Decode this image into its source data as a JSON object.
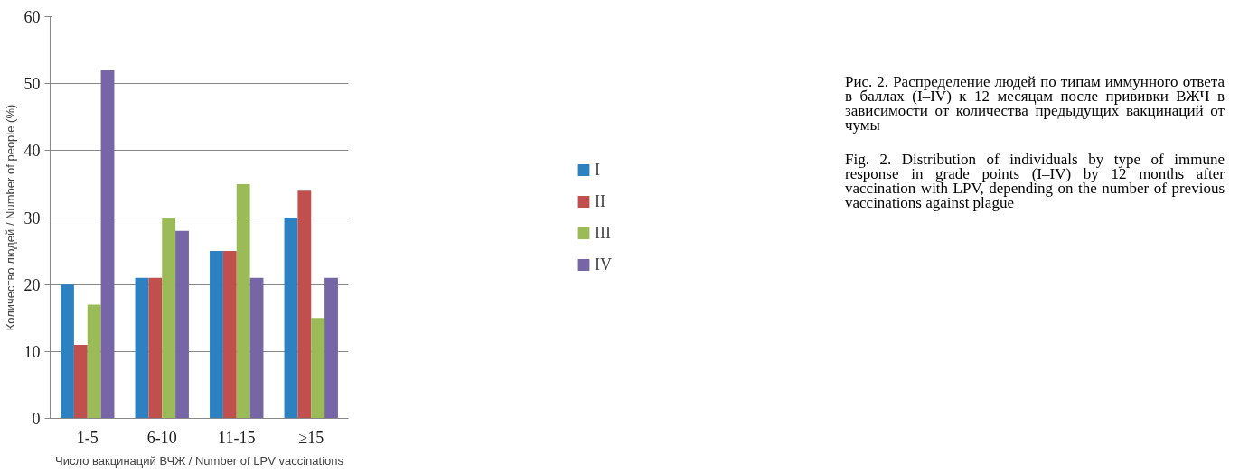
{
  "chart_data": {
    "type": "bar",
    "xlabel": "Число вакцинаций ВЧЖ / Number of LPV vaccinations",
    "ylabel": "Количество людей / Number of people (%)",
    "categories": [
      "1-5",
      "6-10",
      "11-15",
      "≥15"
    ],
    "series": [
      {
        "name": "I",
        "color": "#2e81c0",
        "values": [
          20,
          21,
          25,
          30
        ]
      },
      {
        "name": "II",
        "color": "#c0504d",
        "values": [
          11,
          21,
          25,
          34
        ]
      },
      {
        "name": "III",
        "color": "#9bbb59",
        "values": [
          17,
          30,
          35,
          15
        ]
      },
      {
        "name": "IV",
        "color": "#7766a6",
        "values": [
          52,
          28,
          21,
          21
        ]
      }
    ],
    "ylim": [
      0,
      60
    ],
    "yticks": [
      0,
      10,
      20,
      30,
      40,
      50,
      60
    ],
    "grid": "y",
    "legend": "right",
    "annotations": [
      "Рис. 2. Распределение людей по типам иммунного ответа в баллах (I–IV) к 12 месяцам после прививки ВЖЧ в зависимости от количества предыдущих вакцинаций от чумы",
      "Fig. 2. Distribution of individuals by type of immune response in grade points (I–IV) by 12 months after vaccination with LPV, depending on the number of previous vaccinations against plague"
    ]
  }
}
